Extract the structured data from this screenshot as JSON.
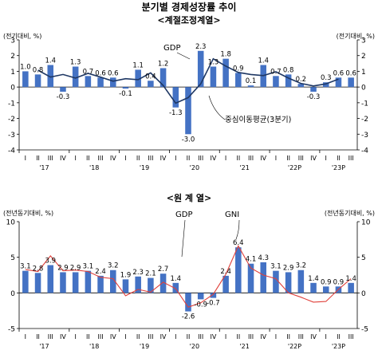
{
  "main_title": "분기별 경제성장률 추이",
  "charts": [
    {
      "subtitle": "<계절조정계열>",
      "unit_left": "(전기대비, %)",
      "unit_right": "(전기대비, %)",
      "series_gdp_label": "GDP",
      "series_ma_label": "중심이동평균(3분기)"
    },
    {
      "subtitle": "<원 계 열>",
      "unit_left": "(전년동기대비, %)",
      "unit_right": "(전년동기대비, %)",
      "series_gdp_label": "GDP",
      "series_gni_label": "GNI"
    }
  ],
  "colors": {
    "bar": "#4472C4",
    "line_ma": "#1F3864",
    "line_gni": "#E0403A",
    "axis": "#000000"
  },
  "chart_data": [
    {
      "type": "bar",
      "title": "<계절조정계열>",
      "categories": [
        "2017 Q1",
        "2017 Q2",
        "2017 Q3",
        "2017 Q4",
        "2018 Q1",
        "2018 Q2",
        "2018 Q3",
        "2018 Q4",
        "2019 Q1",
        "2019 Q2",
        "2019 Q3",
        "2019 Q4",
        "2020 Q1",
        "2020 Q2",
        "2020 Q3",
        "2020 Q4",
        "2021 Q1",
        "2021 Q2",
        "2021 Q3",
        "2021 Q4",
        "2022 Q1",
        "2022 Q2",
        "2022 Q3",
        "2022 Q4",
        "2023 Q1",
        "2023 Q2",
        "2023 Q3"
      ],
      "quarter_labels": [
        "I",
        "II",
        "III",
        "IV",
        "I",
        "II",
        "III",
        "IV",
        "I",
        "II",
        "III",
        "IV",
        "I",
        "II",
        "III",
        "IV",
        "I",
        "II",
        "III",
        "IV",
        "I",
        "II",
        "III",
        "IV",
        "I",
        "II",
        "III"
      ],
      "year_labels": [
        "'17",
        "'18",
        "'19",
        "'20",
        "'21",
        "'22P",
        "'23P"
      ],
      "series": [
        {
          "name": "GDP",
          "kind": "bar",
          "values": [
            1.0,
            0.8,
            1.4,
            -0.3,
            1.3,
            0.7,
            0.6,
            0.6,
            -0.1,
            1.1,
            0.4,
            1.2,
            -1.3,
            -3.0,
            2.3,
            1.3,
            1.8,
            0.9,
            0.1,
            1.4,
            0.7,
            0.8,
            0.2,
            -0.3,
            0.3,
            0.6,
            0.6
          ],
          "labels": [
            "1.0",
            "0.8",
            "1.4",
            "-0.3",
            "1.3",
            "0.7",
            "0.6",
            "0.6",
            "-0.1",
            "1.1",
            "0.4",
            "1.2",
            "-1.3",
            "-3.0",
            "2.3",
            "1.3",
            "1.8",
            "0.9",
            "0.1",
            "1.4",
            "0.7",
            "0.8",
            "0.2",
            "-0.3",
            "0.3",
            "0.6",
            "0.6"
          ]
        },
        {
          "name": "중심이동평균(3분기)",
          "kind": "line",
          "values": [
            null,
            1.07,
            0.63,
            0.8,
            0.57,
            0.87,
            0.63,
            0.37,
            0.53,
            0.47,
            0.9,
            0.1,
            -1.03,
            -0.67,
            0.2,
            1.8,
            1.33,
            0.93,
            0.8,
            0.73,
            0.97,
            0.57,
            0.23,
            0.07,
            0.2,
            0.5,
            null
          ]
        }
      ],
      "xlabel": "",
      "ylabel": "(전기대비, %)",
      "ylim": [
        -4,
        3
      ],
      "yticks": [
        3,
        2,
        1,
        0,
        -1,
        -2,
        -3,
        -4
      ],
      "grid": false
    },
    {
      "type": "bar",
      "title": "<원 계 열>",
      "categories": [
        "2017 Q1",
        "2017 Q2",
        "2017 Q3",
        "2017 Q4",
        "2018 Q1",
        "2018 Q2",
        "2018 Q3",
        "2018 Q4",
        "2019 Q1",
        "2019 Q2",
        "2019 Q3",
        "2019 Q4",
        "2020 Q1",
        "2020 Q2",
        "2020 Q3",
        "2020 Q4",
        "2021 Q1",
        "2021 Q2",
        "2021 Q3",
        "2021 Q4",
        "2022 Q1",
        "2022 Q2",
        "2022 Q3",
        "2022 Q4",
        "2023 Q1",
        "2023 Q2",
        "2023 Q3"
      ],
      "quarter_labels": [
        "I",
        "II",
        "III",
        "IV",
        "I",
        "II",
        "III",
        "IV",
        "I",
        "II",
        "III",
        "IV",
        "I",
        "II",
        "III",
        "IV",
        "I",
        "II",
        "III",
        "IV",
        "I",
        "II",
        "III",
        "IV",
        "I",
        "II",
        "III"
      ],
      "year_labels": [
        "'17",
        "'18",
        "'19",
        "'20",
        "'21",
        "'22P",
        "'23P"
      ],
      "series": [
        {
          "name": "GDP",
          "kind": "bar",
          "values": [
            3.1,
            2.8,
            3.9,
            2.9,
            2.9,
            3.1,
            2.4,
            3.2,
            1.9,
            2.3,
            2.1,
            2.7,
            1.4,
            -2.6,
            -0.9,
            -0.7,
            2.4,
            6.4,
            4.1,
            4.3,
            3.1,
            2.9,
            3.2,
            1.4,
            0.9,
            0.9,
            1.4
          ],
          "labels": [
            "3.1",
            "2.8",
            "3.9",
            "2.9",
            "2.9",
            "3.1",
            "2.4",
            "3.2",
            "1.9",
            "2.3",
            "2.1",
            "2.7",
            "1.4",
            "-2.6",
            "-0.9",
            "-0.7",
            "2.4",
            "6.4",
            "4.1",
            "4.3",
            "3.1",
            "2.9",
            "3.2",
            "1.4",
            "0.9",
            "0.9",
            "1.4"
          ]
        },
        {
          "name": "GNI",
          "kind": "line",
          "values": [
            3.3,
            3.0,
            5.2,
            3.1,
            3.2,
            3.0,
            2.2,
            2.0,
            -0.4,
            0.5,
            0.1,
            1.5,
            0.6,
            -2.0,
            -1.4,
            -0.2,
            2.6,
            6.6,
            3.5,
            2.5,
            2.0,
            0.0,
            -0.6,
            -1.3,
            -1.2,
            0.5,
            2.0
          ]
        }
      ],
      "xlabel": "",
      "ylabel": "(전년동기대비, %)",
      "ylim": [
        -5,
        10
      ],
      "yticks": [
        10,
        5,
        0,
        -5
      ],
      "grid": false
    }
  ]
}
